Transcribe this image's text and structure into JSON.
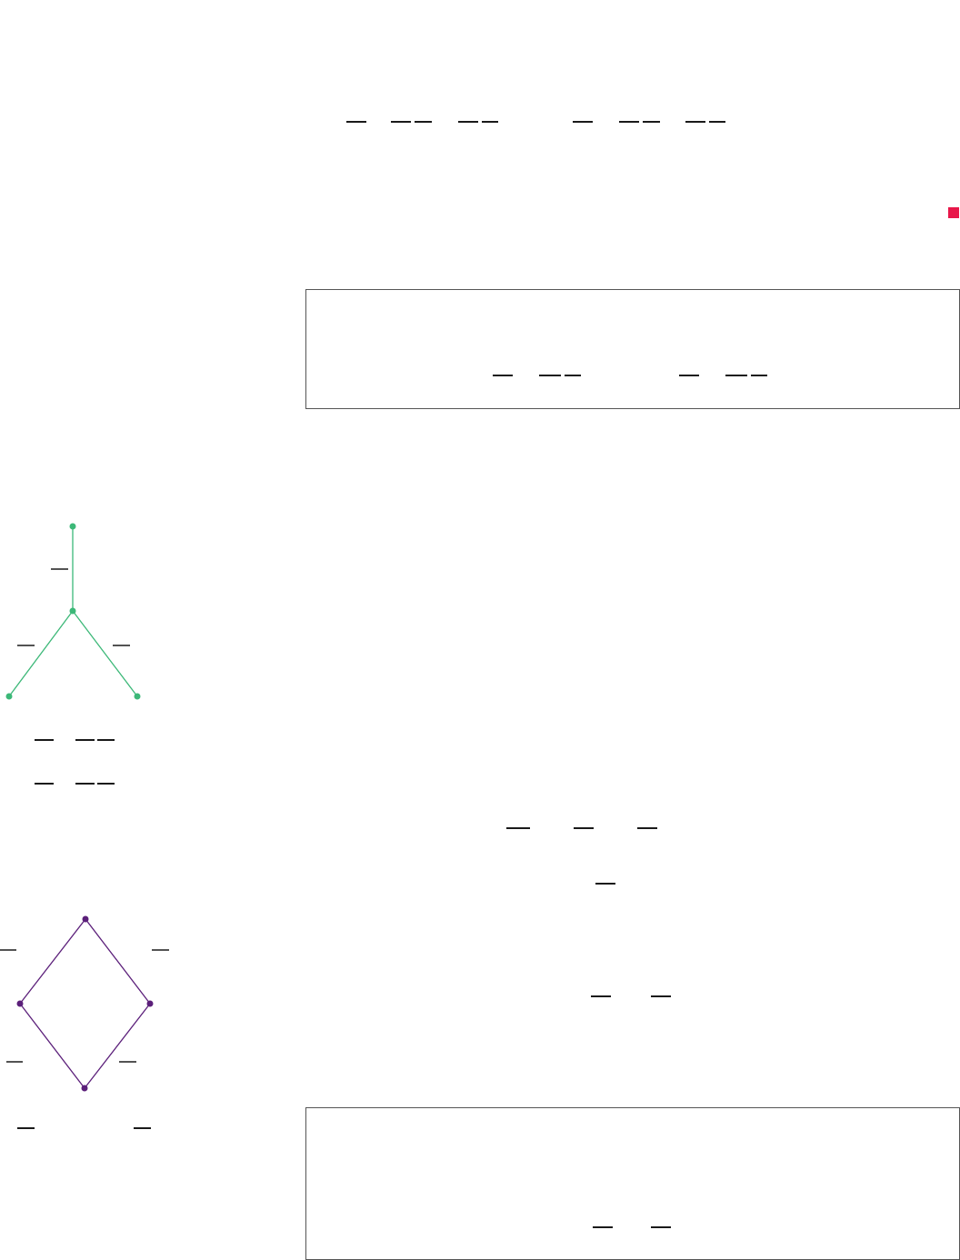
{
  "document": {
    "formula_blocks": [
      {
        "id": "top-equation-left",
        "fraction_count": 5
      },
      {
        "id": "top-equation-right",
        "fraction_count": 5
      },
      {
        "id": "frame-1-equation-left",
        "fraction_count": 3
      },
      {
        "id": "frame-1-equation-right",
        "fraction_count": 3
      },
      {
        "id": "tree-equation-1",
        "fraction_count": 3
      },
      {
        "id": "tree-equation-2",
        "fraction_count": 3
      },
      {
        "id": "middle-equation-1",
        "fraction_count": 3
      },
      {
        "id": "middle-equation-2",
        "fraction_count": 1
      },
      {
        "id": "middle-equation-3",
        "fraction_count": 2
      },
      {
        "id": "diamond-labels-bottom",
        "fraction_count": 2
      },
      {
        "id": "frame-2-equation",
        "fraction_count": 2
      }
    ],
    "end_of_proof_marker": {
      "color": "#e8174a"
    },
    "frames": [
      {
        "id": "frame-1",
        "border_color": "#555555"
      },
      {
        "id": "frame-2",
        "border_color": "#555555"
      }
    ],
    "figures": {
      "tree": {
        "color": "#3cb878",
        "node_count": 4,
        "edge_count": 3,
        "edge_labels": 3
      },
      "diamond": {
        "color": "#5b1f7a",
        "node_count": 4,
        "edge_count": 4,
        "edge_labels": 4
      }
    }
  }
}
